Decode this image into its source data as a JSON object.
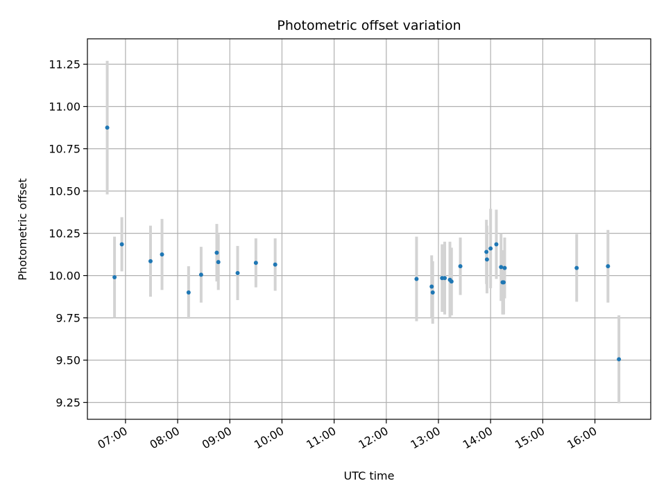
{
  "chart_data": {
    "type": "scatter",
    "title": "Photometric offset variation",
    "xlabel": "UTC time",
    "ylabel": "Photometric offset",
    "x_unit": "hours (UTC, decimal)",
    "xlim": [
      6.27,
      17.07
    ],
    "ylim": [
      9.15,
      11.4
    ],
    "grid": true,
    "x_ticks": [
      {
        "value": 7,
        "label": "07:00"
      },
      {
        "value": 8,
        "label": "08:00"
      },
      {
        "value": 9,
        "label": "09:00"
      },
      {
        "value": 10,
        "label": "10:00"
      },
      {
        "value": 11,
        "label": "11:00"
      },
      {
        "value": 12,
        "label": "12:00"
      },
      {
        "value": 13,
        "label": "13:00"
      },
      {
        "value": 14,
        "label": "14:00"
      },
      {
        "value": 15,
        "label": "15:00"
      },
      {
        "value": 16,
        "label": "16:00"
      }
    ],
    "y_ticks": [
      {
        "value": 9.25,
        "label": "9.25"
      },
      {
        "value": 9.5,
        "label": "9.50"
      },
      {
        "value": 9.75,
        "label": "9.75"
      },
      {
        "value": 10.0,
        "label": "10.00"
      },
      {
        "value": 10.25,
        "label": "10.25"
      },
      {
        "value": 10.5,
        "label": "10.50"
      },
      {
        "value": 10.75,
        "label": "10.75"
      },
      {
        "value": 11.0,
        "label": "11.00"
      },
      {
        "value": 11.25,
        "label": "11.25"
      }
    ],
    "colors": {
      "point": "#1f77b4",
      "errorbar": "#d3d3d3",
      "grid": "#b0b0b0",
      "axis": "#000000"
    },
    "points": [
      {
        "x": 6.65,
        "y": 10.875,
        "yerr": 0.395
      },
      {
        "x": 6.79,
        "y": 9.99,
        "yerr": 0.24
      },
      {
        "x": 6.93,
        "y": 10.185,
        "yerr": 0.16
      },
      {
        "x": 7.48,
        "y": 10.085,
        "yerr": 0.21
      },
      {
        "x": 7.7,
        "y": 10.125,
        "yerr": 0.21
      },
      {
        "x": 8.21,
        "y": 9.9,
        "yerr": 0.155
      },
      {
        "x": 8.45,
        "y": 10.005,
        "yerr": 0.165
      },
      {
        "x": 8.75,
        "y": 10.135,
        "yerr": 0.17
      },
      {
        "x": 8.78,
        "y": 10.08,
        "yerr": 0.165
      },
      {
        "x": 9.15,
        "y": 10.015,
        "yerr": 0.16
      },
      {
        "x": 9.5,
        "y": 10.075,
        "yerr": 0.145
      },
      {
        "x": 9.87,
        "y": 10.065,
        "yerr": 0.155
      },
      {
        "x": 12.58,
        "y": 9.98,
        "yerr": 0.25
      },
      {
        "x": 12.87,
        "y": 9.935,
        "yerr": 0.185
      },
      {
        "x": 12.89,
        "y": 9.9,
        "yerr": 0.185
      },
      {
        "x": 13.07,
        "y": 9.985,
        "yerr": 0.2
      },
      {
        "x": 13.12,
        "y": 9.985,
        "yerr": 0.215
      },
      {
        "x": 13.22,
        "y": 9.975,
        "yerr": 0.225
      },
      {
        "x": 13.25,
        "y": 9.965,
        "yerr": 0.2
      },
      {
        "x": 13.42,
        "y": 10.055,
        "yerr": 0.17
      },
      {
        "x": 13.92,
        "y": 10.14,
        "yerr": 0.19
      },
      {
        "x": 13.93,
        "y": 10.095,
        "yerr": 0.2
      },
      {
        "x": 14.0,
        "y": 10.16,
        "yerr": 0.235
      },
      {
        "x": 14.11,
        "y": 10.185,
        "yerr": 0.205
      },
      {
        "x": 14.2,
        "y": 10.05,
        "yerr": 0.2
      },
      {
        "x": 14.23,
        "y": 9.96,
        "yerr": 0.19
      },
      {
        "x": 14.25,
        "y": 9.96,
        "yerr": 0.19
      },
      {
        "x": 14.27,
        "y": 10.045,
        "yerr": 0.18
      },
      {
        "x": 15.65,
        "y": 10.045,
        "yerr": 0.2
      },
      {
        "x": 16.25,
        "y": 10.055,
        "yerr": 0.215
      },
      {
        "x": 16.46,
        "y": 9.505,
        "yerr": 0.26
      }
    ]
  }
}
